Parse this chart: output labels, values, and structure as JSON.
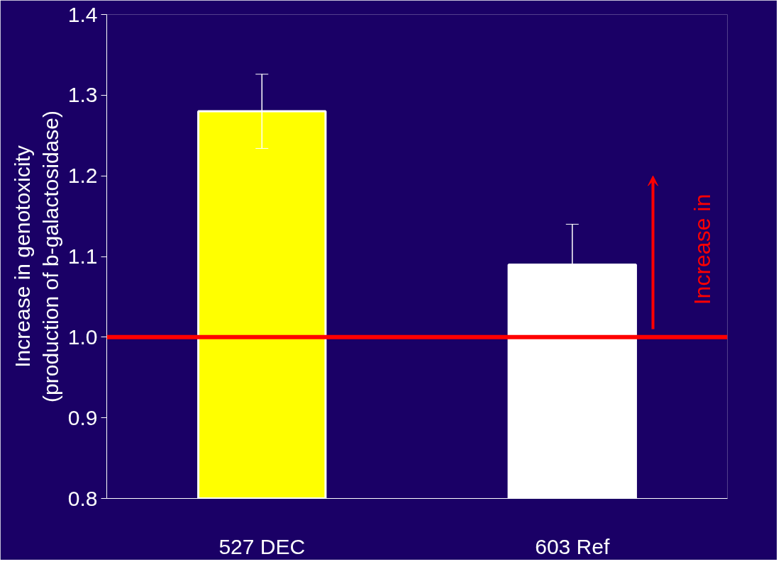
{
  "chart_data": {
    "type": "bar",
    "ylabel": "Increase in genotoxicity\n(production of b-galactosidase)",
    "categories": [
      "527 DEC",
      "603 Ref"
    ],
    "values": [
      1.28,
      1.09
    ],
    "colors": [
      "#ffff00",
      "#ffffff"
    ],
    "errors": [
      0.046,
      0.05
    ],
    "ylim": [
      0.8,
      1.4
    ],
    "yticks": [
      0.8,
      0.9,
      {
        "value": 1.0,
        "label": "1.0"
      },
      1.1,
      1.2,
      1.3,
      1.4
    ],
    "grid": false,
    "ref_lines": [
      {
        "axis": "y",
        "value": 1.0,
        "label": "Increase in",
        "color": "#ff0000"
      }
    ]
  }
}
